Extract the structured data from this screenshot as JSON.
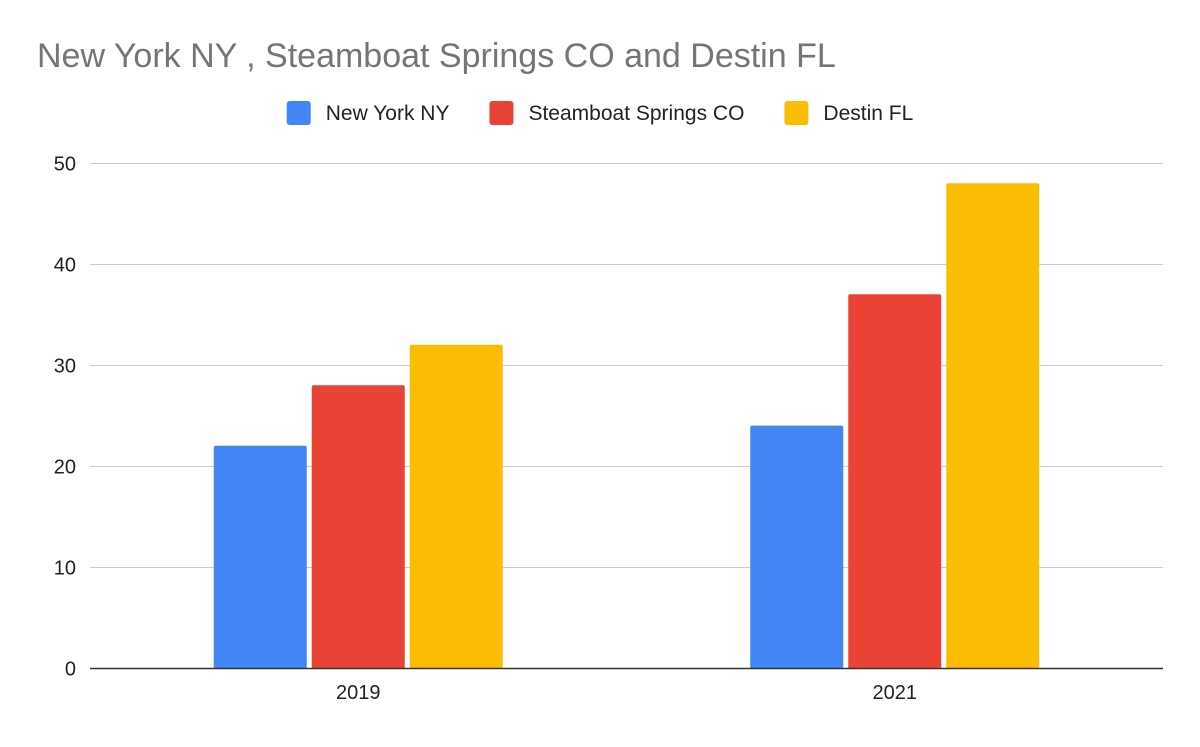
{
  "chart_data": {
    "type": "bar",
    "title": "New York NY , Steamboat Springs CO and Destin FL",
    "categories": [
      "2019",
      "2021"
    ],
    "series": [
      {
        "name": "New York NY",
        "color": "#4285F4",
        "values": [
          22,
          24
        ]
      },
      {
        "name": "Steamboat Springs CO",
        "color": "#EA4335",
        "values": [
          28,
          37
        ]
      },
      {
        "name": "Destin FL",
        "color": "#FBBC04",
        "values": [
          32,
          48
        ]
      }
    ],
    "ylim": [
      0,
      50
    ],
    "yticks": [
      0,
      10,
      20,
      30,
      40,
      50
    ],
    "grid": true,
    "legend_position": "top"
  }
}
